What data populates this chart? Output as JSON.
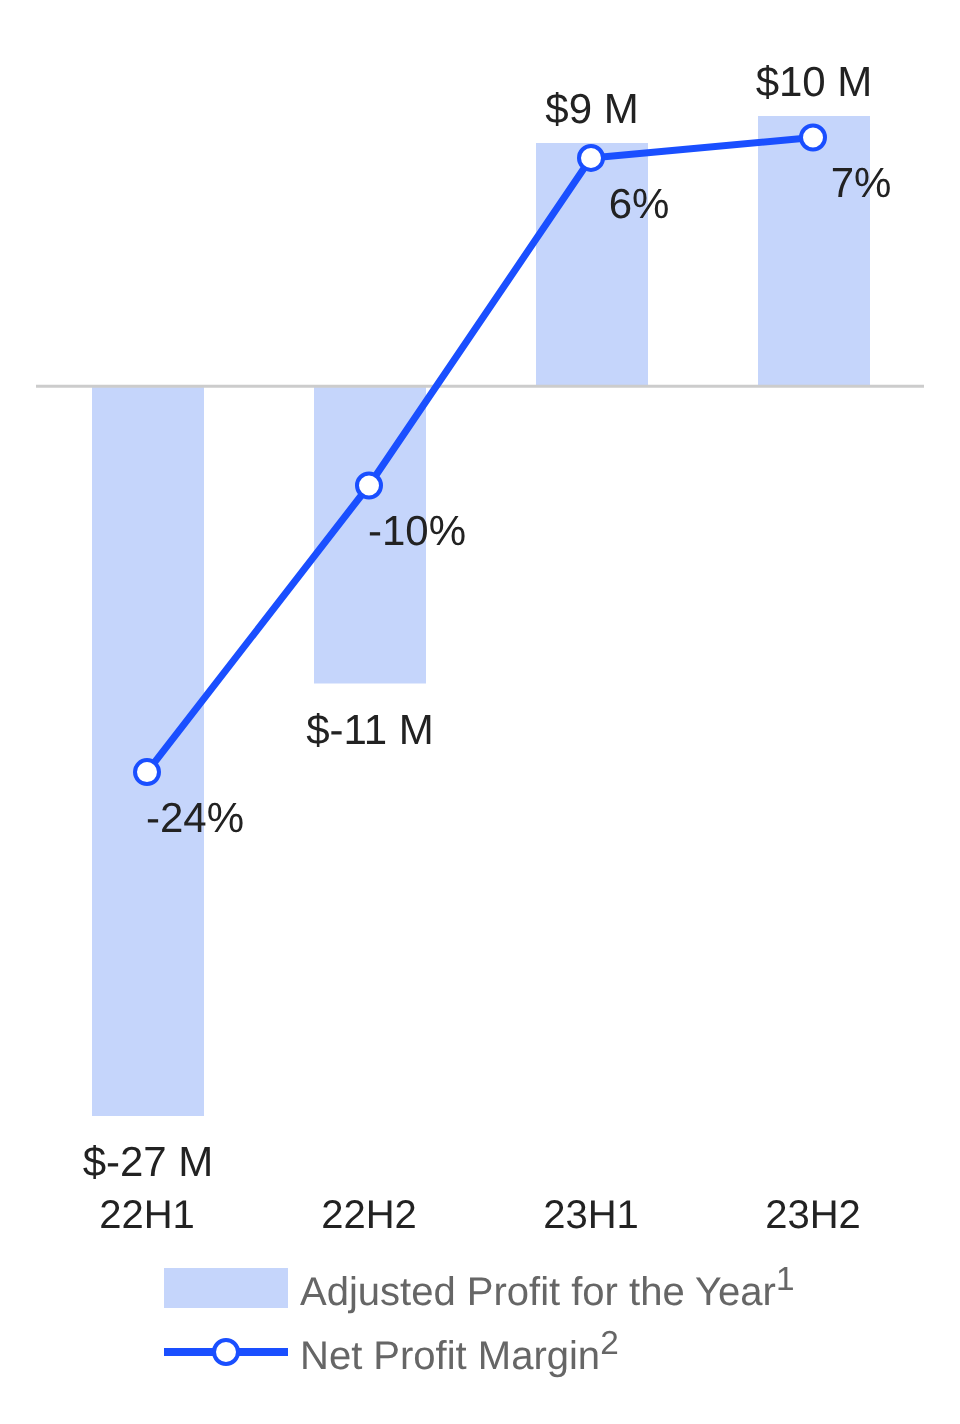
{
  "chart_data": {
    "type": "bar",
    "categories": [
      "22H1",
      "22H2",
      "23H1",
      "23H2"
    ],
    "series": [
      {
        "name": "Adjusted Profit for the Year$^{1}$",
        "color": "#c5d5fb",
        "values": [
          -27,
          -11,
          9,
          10
        ],
        "value_labels": [
          "$-27 M",
          "$-11 M",
          "$9 M",
          "$10 M"
        ]
      },
      {
        "name": "Net Profit Margin$^{2}$",
        "type": "line",
        "axis": "y2",
        "color": "#1a4fff",
        "values": [
          -24,
          -10,
          6,
          7
        ],
        "value_labels": [
          "-24%",
          "-10%",
          "6%",
          "7%"
        ]
      }
    ],
    "tick_labels": "x",
    "grid": false,
    "legend": "bottom",
    "marker": "circle",
    "line_style": "solid",
    "ref_lines": [
      {
        "axis": "y",
        "value": 0,
        "color": "#cccccc"
      }
    ]
  }
}
